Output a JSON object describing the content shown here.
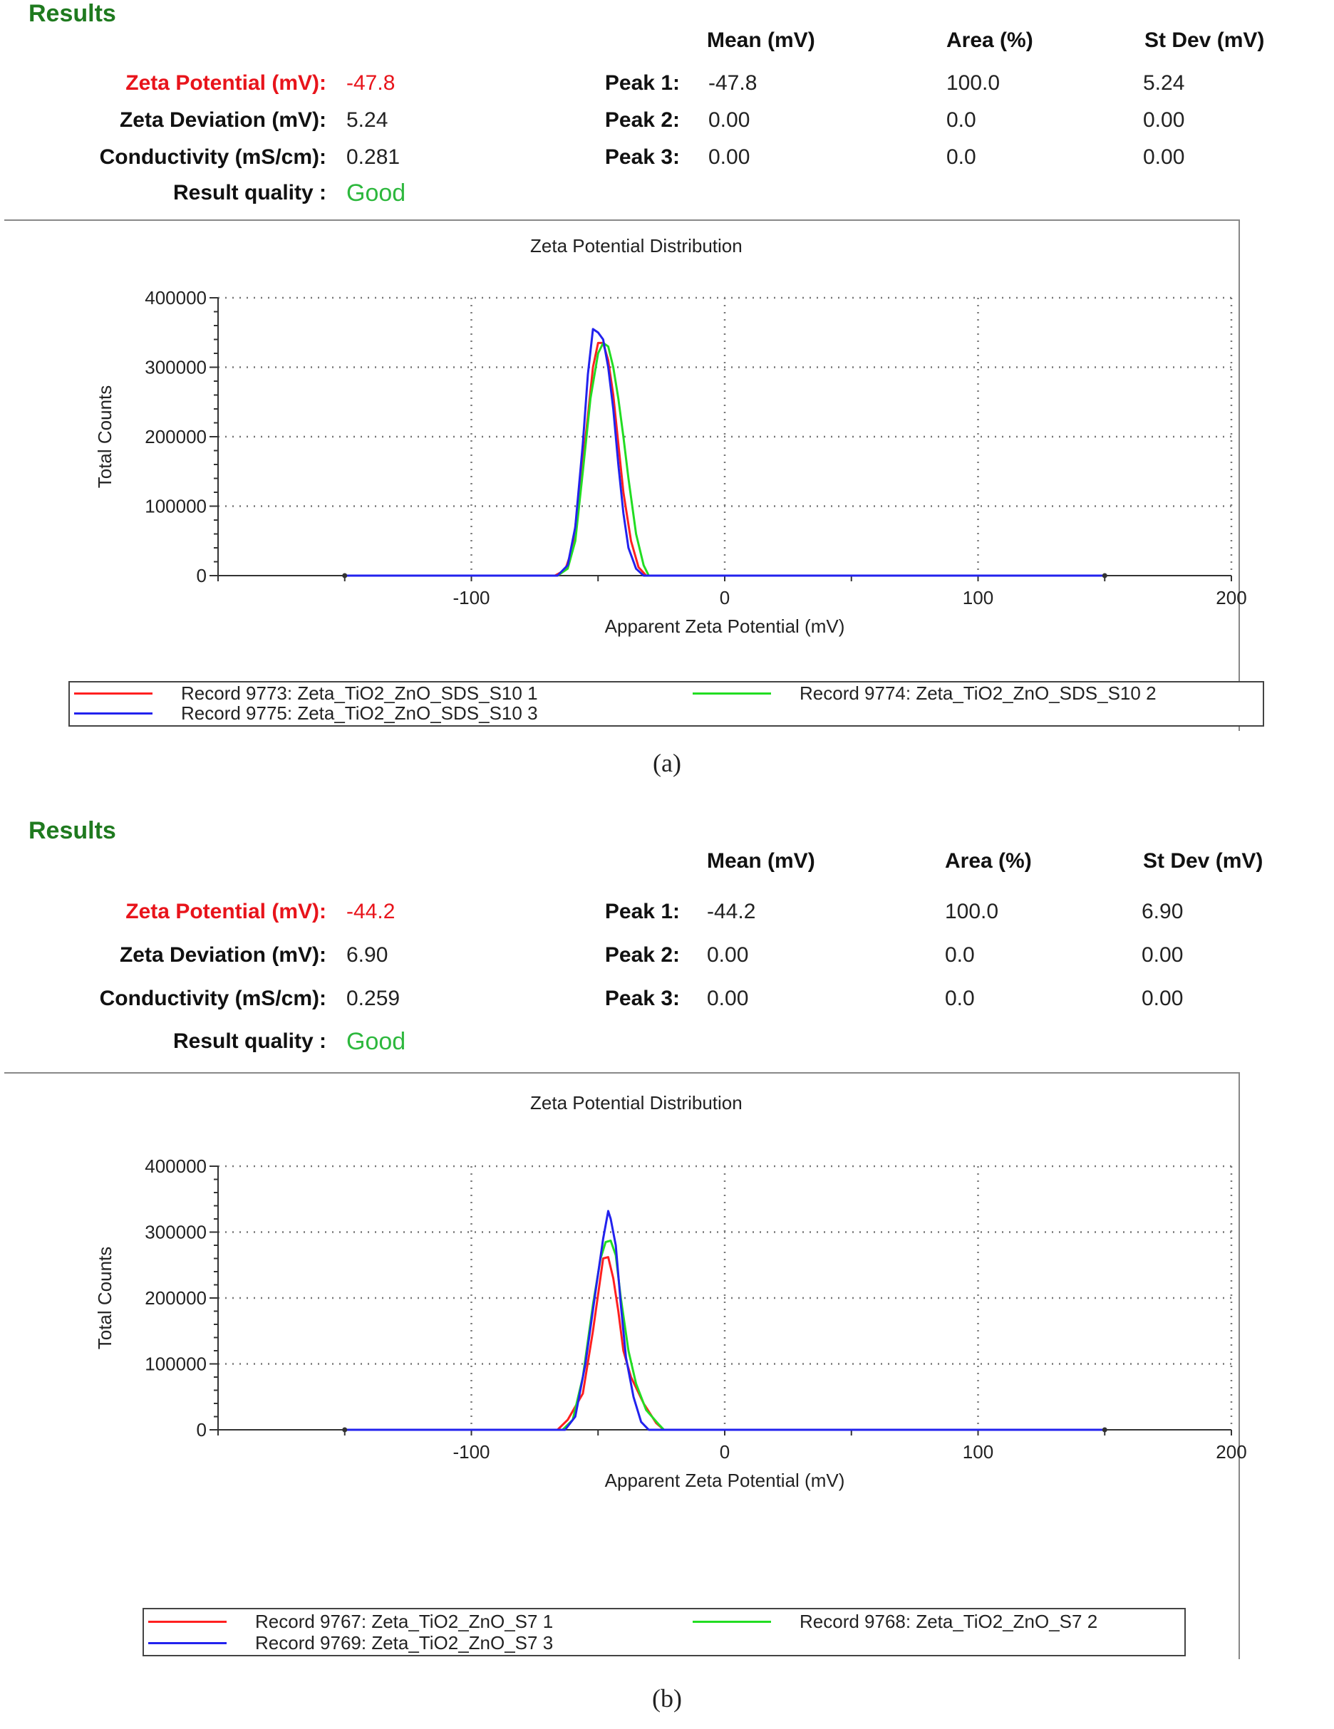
{
  "panels": [
    {
      "results_title": "Results",
      "summary": [
        {
          "label": "Zeta Potential (mV):",
          "value": "-47.8"
        },
        {
          "label": "Zeta Deviation (mV):",
          "value": "5.24"
        },
        {
          "label": "Conductivity (mS/cm):",
          "value": "0.281"
        },
        {
          "label": "Result quality :",
          "value": "Good"
        }
      ],
      "peak_headers": [
        "Mean (mV)",
        "Area (%)",
        "St Dev (mV)"
      ],
      "peaks": [
        {
          "label": "Peak 1:",
          "mean": "-47.8",
          "area": "100.0",
          "stdev": "5.24"
        },
        {
          "label": "Peak 2:",
          "mean": "0.00",
          "area": "0.0",
          "stdev": "0.00"
        },
        {
          "label": "Peak 3:",
          "mean": "0.00",
          "area": "0.0",
          "stdev": "0.00"
        }
      ],
      "caption": "(a)"
    },
    {
      "results_title": "Results",
      "summary": [
        {
          "label": "Zeta Potential (mV):",
          "value": "-44.2"
        },
        {
          "label": "Zeta Deviation (mV):",
          "value": "6.90"
        },
        {
          "label": "Conductivity (mS/cm):",
          "value": "0.259"
        },
        {
          "label": "Result quality :",
          "value": "Good"
        }
      ],
      "peak_headers": [
        "Mean (mV)",
        "Area (%)",
        "St Dev (mV)"
      ],
      "peaks": [
        {
          "label": "Peak 1:",
          "mean": "-44.2",
          "area": "100.0",
          "stdev": "6.90"
        },
        {
          "label": "Peak 2:",
          "mean": "0.00",
          "area": "0.0",
          "stdev": "0.00"
        },
        {
          "label": "Peak 3:",
          "mean": "0.00",
          "area": "0.0",
          "stdev": "0.00"
        }
      ],
      "caption": "(b)"
    }
  ],
  "colors": {
    "results_heading": "#1f7a1f",
    "zeta_highlight": "#e8141b",
    "quality_good": "#2db83d"
  },
  "chart_data": [
    {
      "type": "line",
      "title": "Zeta Potential Distribution",
      "xlabel": "Apparent Zeta Potential (mV)",
      "ylabel": "Total Counts",
      "xlim": [
        -200,
        200
      ],
      "ylim": [
        0,
        400000
      ],
      "xticks": [
        -100,
        0,
        100,
        200
      ],
      "xtick_labels": [
        "-100",
        "0",
        "100",
        "200"
      ],
      "yticks": [
        0,
        100000,
        200000,
        300000,
        400000
      ],
      "ytick_labels": [
        "0",
        "100000",
        "200000",
        "300000",
        "400000"
      ],
      "grid": true,
      "legend_position": "bottom",
      "series": [
        {
          "name": "Record 9773: Zeta_TiO2_ZnO_SDS_S10 1",
          "color": "#ff2020",
          "x": [
            -150,
            -67,
            -63,
            -60,
            -57,
            -54,
            -52,
            -50,
            -48,
            -46,
            -44,
            -42,
            -40,
            -37,
            -34,
            -31,
            150
          ],
          "y": [
            0,
            0,
            8000,
            40000,
            130000,
            230000,
            300000,
            335000,
            335000,
            310000,
            260000,
            190000,
            120000,
            50000,
            12000,
            0,
            0
          ]
        },
        {
          "name": "Record 9774: Zeta_TiO2_ZnO_SDS_S10 2",
          "color": "#22dd22",
          "x": [
            -150,
            -66,
            -62,
            -59,
            -56,
            -53,
            -50,
            -48,
            -46,
            -44,
            -42,
            -40,
            -38,
            -35,
            -32,
            -30,
            150
          ],
          "y": [
            0,
            0,
            10000,
            50000,
            150000,
            255000,
            320000,
            335000,
            330000,
            300000,
            255000,
            200000,
            140000,
            60000,
            15000,
            0,
            0
          ]
        },
        {
          "name": "Record 9775: Zeta_TiO2_ZnO_SDS_S10 3",
          "color": "#2222ee",
          "x": [
            -150,
            -66,
            -62,
            -59,
            -56,
            -54,
            -52,
            -50,
            -48,
            -46,
            -44,
            -42,
            -40,
            -38,
            -35,
            -32,
            150
          ],
          "y": [
            0,
            0,
            15000,
            70000,
            190000,
            290000,
            355000,
            350000,
            340000,
            300000,
            240000,
            160000,
            90000,
            40000,
            10000,
            0,
            0
          ]
        }
      ]
    },
    {
      "type": "line",
      "title": "Zeta Potential Distribution",
      "xlabel": "Apparent Zeta Potential (mV)",
      "ylabel": "Total Counts",
      "xlim": [
        -200,
        200
      ],
      "ylim": [
        0,
        400000
      ],
      "xticks": [
        -100,
        0,
        100,
        200
      ],
      "xtick_labels": [
        "-100",
        "0",
        "100",
        "200"
      ],
      "yticks": [
        0,
        100000,
        200000,
        300000,
        400000
      ],
      "ytick_labels": [
        "0",
        "100000",
        "200000",
        "300000",
        "400000"
      ],
      "grid": true,
      "legend_position": "bottom",
      "series": [
        {
          "name": "Record 9767: Zeta_TiO2_ZnO_S7 1",
          "color": "#ff2020",
          "x": [
            -150,
            -66,
            -62,
            -56,
            -52,
            -48,
            -46,
            -44,
            -42,
            -40,
            -37,
            -32,
            -27,
            -24,
            150
          ],
          "y": [
            0,
            0,
            15000,
            55000,
            150000,
            260000,
            262000,
            230000,
            180000,
            120000,
            80000,
            40000,
            10000,
            0,
            0
          ]
        },
        {
          "name": "Record 9768: Zeta_TiO2_ZnO_S7 2",
          "color": "#22dd22",
          "x": [
            -150,
            -64,
            -60,
            -56,
            -52,
            -49,
            -47,
            -45,
            -43,
            -41,
            -38,
            -35,
            -31,
            -26,
            -24,
            150
          ],
          "y": [
            0,
            0,
            15000,
            80000,
            190000,
            260000,
            285000,
            287000,
            265000,
            200000,
            120000,
            70000,
            30000,
            8000,
            0,
            0
          ]
        },
        {
          "name": "Record 9769: Zeta_TiO2_ZnO_S7 3",
          "color": "#2222ee",
          "x": [
            -150,
            -63,
            -59,
            -55,
            -51,
            -48,
            -46,
            -45,
            -43,
            -41,
            -39,
            -36,
            -33,
            -30,
            150
          ],
          "y": [
            0,
            0,
            20000,
            100000,
            210000,
            290000,
            332000,
            320000,
            280000,
            190000,
            110000,
            50000,
            12000,
            0,
            0
          ]
        }
      ]
    }
  ]
}
